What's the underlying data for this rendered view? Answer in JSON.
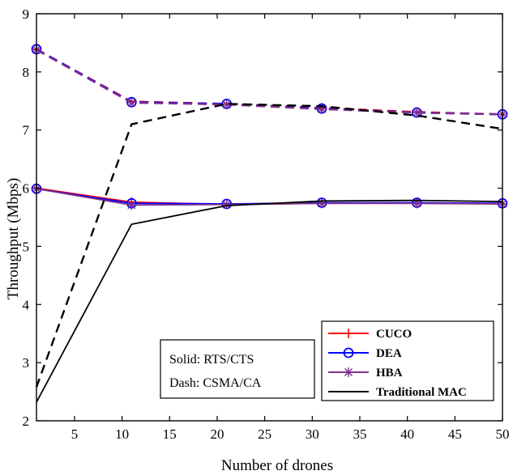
{
  "chart_data": {
    "type": "line",
    "xlabel": "Number of drones",
    "ylabel": "Throughput (Mbps)",
    "xlim": [
      1,
      50
    ],
    "ylim": [
      2,
      9
    ],
    "xticks": [
      5,
      10,
      15,
      20,
      25,
      30,
      35,
      40,
      45,
      50
    ],
    "yticks": [
      2,
      3,
      4,
      5,
      6,
      7,
      8,
      9
    ],
    "grid": false,
    "legend_position": "bottom-right",
    "x": [
      1,
      11,
      21,
      31,
      41,
      50
    ],
    "series": [
      {
        "name": "CUCO",
        "color": "#ff0000",
        "linestyle": "solid",
        "marker": "plus",
        "group": "RTS/CTS",
        "values": [
          6.0,
          5.76,
          5.72,
          5.74,
          5.74,
          5.73
        ]
      },
      {
        "name": "DEA",
        "color": "#0000ff",
        "linestyle": "solid",
        "marker": "circle",
        "group": "RTS/CTS",
        "values": [
          5.99,
          5.74,
          5.73,
          5.75,
          5.75,
          5.74
        ]
      },
      {
        "name": "HBA",
        "color": "#7e2f8e",
        "linestyle": "solid",
        "marker": "asterisk",
        "group": "RTS/CTS",
        "values": [
          5.99,
          5.71,
          5.72,
          5.74,
          5.74,
          5.73
        ]
      },
      {
        "name": "Traditional MAC",
        "color": "#000000",
        "linestyle": "solid",
        "marker": "none",
        "group": "RTS/CTS",
        "values": [
          2.32,
          5.38,
          5.7,
          5.78,
          5.79,
          5.77
        ]
      },
      {
        "name": "CUCO",
        "color": "#ff0000",
        "linestyle": "dashed",
        "marker": "plus",
        "group": "CSMA/CA",
        "values": [
          8.39,
          7.49,
          7.45,
          7.38,
          7.31,
          7.27
        ]
      },
      {
        "name": "DEA",
        "color": "#0000ff",
        "linestyle": "dashed",
        "marker": "circle",
        "group": "CSMA/CA",
        "values": [
          8.39,
          7.48,
          7.45,
          7.37,
          7.3,
          7.27
        ]
      },
      {
        "name": "HBA",
        "color": "#7e2f8e",
        "linestyle": "dashed",
        "marker": "asterisk",
        "group": "CSMA/CA",
        "values": [
          8.38,
          7.47,
          7.44,
          7.36,
          7.3,
          7.27
        ]
      },
      {
        "name": "Traditional MAC",
        "color": "#000000",
        "linestyle": "dashed",
        "marker": "none",
        "group": "CSMA/CA",
        "values": [
          2.58,
          7.1,
          7.45,
          7.41,
          7.25,
          7.02
        ]
      }
    ],
    "legend": [
      {
        "label": "CUCO",
        "color": "#ff0000",
        "marker": "plus"
      },
      {
        "label": "DEA",
        "color": "#0000ff",
        "marker": "circle"
      },
      {
        "label": "HBA",
        "color": "#7e2f8e",
        "marker": "asterisk"
      },
      {
        "label": "Traditional MAC",
        "color": "#000000",
        "marker": "none"
      }
    ],
    "annotation": {
      "line1": "Solid: RTS/CTS",
      "line2": "Dash: CSMA/CA"
    }
  }
}
